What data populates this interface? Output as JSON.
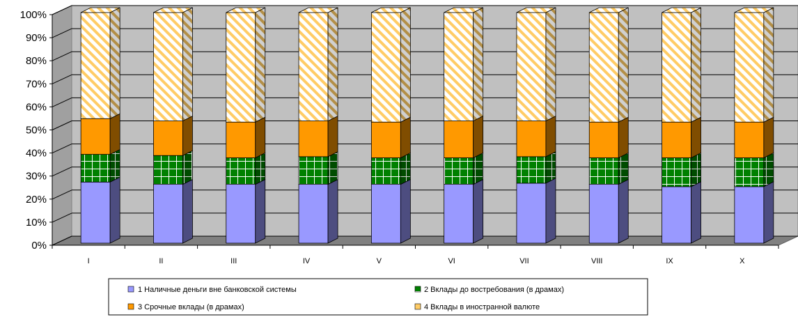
{
  "chart_data": {
    "type": "bar",
    "stacked": true,
    "percent": true,
    "three_d": true,
    "categories": [
      "I",
      "II",
      "III",
      "IV",
      "V",
      "VI",
      "VII",
      "VIII",
      "IX",
      "X"
    ],
    "y_tick_labels": [
      "0%",
      "10%",
      "20%",
      "30%",
      "40%",
      "50%",
      "60%",
      "70%",
      "80%",
      "90%",
      "100%"
    ],
    "ylim": [
      0,
      100
    ],
    "grid": true,
    "legend_position": "bottom",
    "series": [
      {
        "name": "1 Наличные деньги вне банковской системы",
        "color": "#9999ff",
        "pattern": "solid",
        "values": [
          26.5,
          25.5,
          25.5,
          25.5,
          25.5,
          25.5,
          26,
          25.5,
          24.5,
          24.5
        ]
      },
      {
        "name": "2 Вклады до востребования (в драмах)",
        "color": "#008000",
        "pattern": "grid",
        "values": [
          12,
          12.5,
          11.5,
          12,
          11.5,
          11.5,
          11.5,
          11.5,
          12.5,
          12.5
        ]
      },
      {
        "name": "3 Срочные вклады (в драмах)",
        "color": "#ff9900",
        "pattern": "solid",
        "values": [
          15.5,
          15,
          15.5,
          15.5,
          15.5,
          16,
          15.5,
          15.5,
          15.5,
          15.5
        ]
      },
      {
        "name": "4 Вклады в иностранной валюте",
        "color": "#ffcc66",
        "pattern": "hatch",
        "values": [
          46,
          47,
          47.5,
          47,
          47.5,
          47,
          47,
          47.5,
          47.5,
          47.5
        ]
      }
    ]
  }
}
